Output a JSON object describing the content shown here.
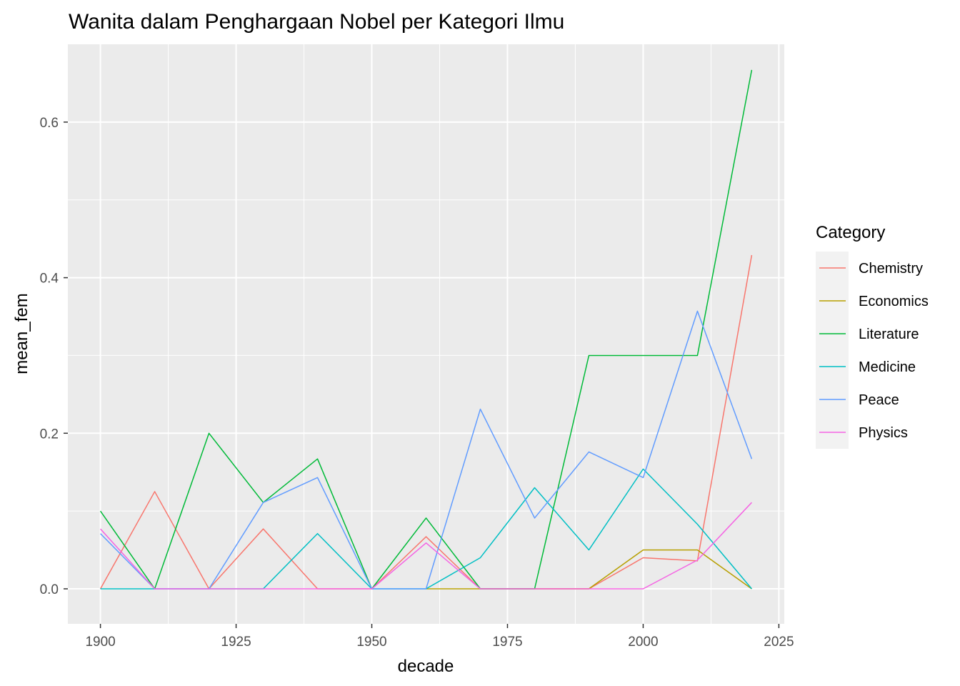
{
  "chart_data": {
    "type": "line",
    "title": "Wanita dalam Penghargaan Nobel per Kategori Ilmu",
    "xlabel": "decade",
    "ylabel": "mean_fem",
    "xlim": [
      1894,
      2026
    ],
    "ylim": [
      -0.045,
      0.7
    ],
    "x_ticks": [
      1900,
      1925,
      1950,
      1975,
      2000,
      2025
    ],
    "y_ticks": [
      0.0,
      0.2,
      0.4,
      0.6
    ],
    "x_tick_labels": [
      "1900",
      "1925",
      "1950",
      "1975",
      "2000",
      "2025"
    ],
    "y_tick_labels": [
      "0.0",
      "0.2",
      "0.4",
      "0.6"
    ],
    "grid": true,
    "legend": {
      "title": "Category",
      "position": "right"
    },
    "x": [
      1900,
      1910,
      1920,
      1930,
      1940,
      1950,
      1960,
      1970,
      1980,
      1990,
      2000,
      2010,
      2020
    ],
    "series": [
      {
        "name": "Chemistry",
        "color": "#F8766D",
        "values": [
          0,
          0.125,
          0,
          0.077,
          0,
          0,
          0.067,
          0,
          0,
          0,
          0.04,
          0.036,
          0.429
        ]
      },
      {
        "name": "Economics",
        "color": "#B79F00",
        "values": [
          null,
          null,
          null,
          null,
          null,
          null,
          0,
          0,
          0,
          0,
          0.05,
          0.05,
          0
        ]
      },
      {
        "name": "Literature",
        "color": "#00BA38",
        "values": [
          0.1,
          0,
          0.2,
          0.111,
          0.167,
          0,
          0.091,
          0,
          0,
          0.3,
          0.3,
          0.3,
          0.667
        ]
      },
      {
        "name": "Medicine",
        "color": "#00BFC4",
        "values": [
          0,
          0,
          0,
          0,
          0.071,
          0,
          0,
          0.04,
          0.13,
          0.05,
          0.154,
          0.083,
          0
        ]
      },
      {
        "name": "Peace",
        "color": "#619CFF",
        "values": [
          0.071,
          0,
          0,
          0.111,
          0.143,
          0,
          0,
          0.231,
          0.091,
          0.176,
          0.143,
          0.357,
          0.167
        ]
      },
      {
        "name": "Physics",
        "color": "#F564E3",
        "values": [
          0.077,
          0,
          0,
          0,
          0,
          0,
          0.059,
          0,
          0,
          0,
          0,
          0.037,
          0.111
        ]
      }
    ]
  }
}
